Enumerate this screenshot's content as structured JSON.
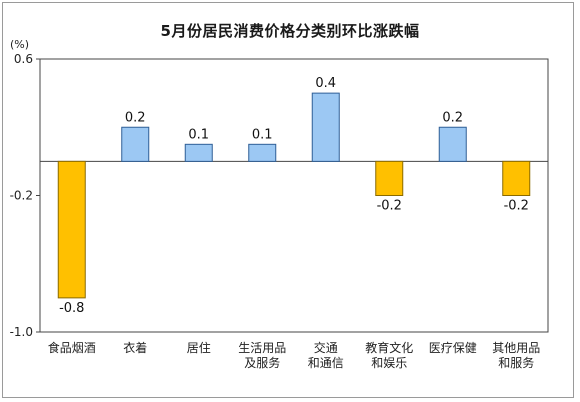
{
  "chart_data": {
    "type": "bar",
    "title": "5月份居民消费价格分类别环比涨跌幅",
    "unit_label": "(%)",
    "categories": [
      [
        "食品烟酒"
      ],
      [
        "衣着"
      ],
      [
        "居住"
      ],
      [
        "生活用品",
        "及服务"
      ],
      [
        "交通",
        "和通信"
      ],
      [
        "教育文化",
        "和娱乐"
      ],
      [
        "医疗保健"
      ],
      [
        "其他用品",
        "和服务"
      ]
    ],
    "values": [
      -0.8,
      0.2,
      0.1,
      0.1,
      0.4,
      -0.2,
      0.2,
      -0.2
    ],
    "value_labels": [
      "-0.8",
      "0.2",
      "0.1",
      "0.1",
      "0.4",
      "-0.2",
      "0.2",
      "-0.2"
    ],
    "ylim": [
      -1.0,
      0.6
    ],
    "yticks": [
      0.6,
      -0.2,
      -1.0
    ],
    "ytick_labels": [
      "0.6",
      "-0.2",
      "-1.0"
    ],
    "grid": false,
    "colors": {
      "positive": "#9CC8F3",
      "positive_edge": "#2F5F96",
      "negative": "#FFC000",
      "negative_edge": "#8A6A00",
      "axis": "#444444"
    }
  }
}
